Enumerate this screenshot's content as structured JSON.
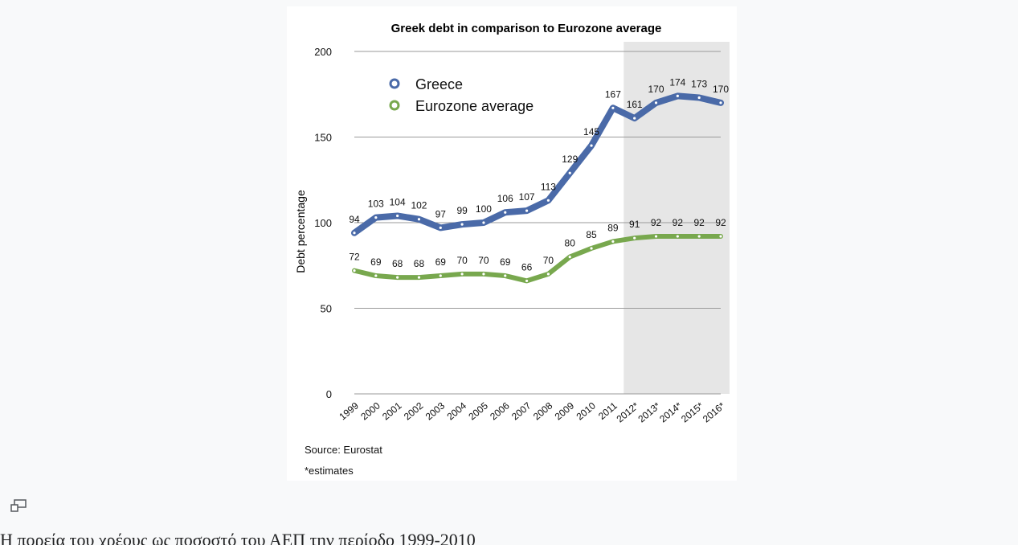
{
  "chart_data": {
    "type": "line",
    "title": "Greek debt in comparison to Eurozone average",
    "xlabel": "",
    "ylabel": "Debt percentage",
    "ylim": [
      0,
      200
    ],
    "yticks": [
      0,
      50,
      100,
      150,
      200
    ],
    "x": [
      "1999",
      "2000",
      "2001",
      "2002",
      "2003",
      "2004",
      "2005",
      "2006",
      "2007",
      "2008",
      "2009",
      "2010",
      "2011",
      "2012*",
      "2013*",
      "2014*",
      "2015*",
      "2016*"
    ],
    "series": [
      {
        "name": "Greece",
        "color": "#4a6aa8",
        "values": [
          94,
          103,
          104,
          102,
          97,
          99,
          100,
          106,
          107,
          113,
          129,
          145,
          167,
          161,
          170,
          174,
          173,
          170
        ]
      },
      {
        "name": "Eurozone average",
        "color": "#78a84e",
        "values": [
          72,
          69,
          68,
          68,
          69,
          70,
          70,
          69,
          66,
          70,
          80,
          85,
          89,
          91,
          92,
          92,
          92,
          92
        ]
      }
    ],
    "shaded_region": {
      "from": "2012*",
      "to": "2016*",
      "color": "#e6e6e6"
    },
    "grid": true,
    "legend": "top-left",
    "notes": [
      "Source: Eurostat",
      "*estimates"
    ]
  },
  "icons": {
    "expand": "expand-icon"
  },
  "caption": "Η πορεία του χρέους ως ποσοστό του ΑΕΠ την περίοδο 1999-2010"
}
